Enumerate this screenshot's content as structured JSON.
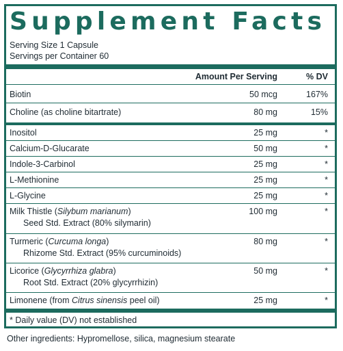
{
  "title": "Supplement Facts",
  "serving_size": "Serving Size 1 Capsule",
  "servings_per_container": "Servings per Container 60",
  "header": {
    "amount": "Amount Per Serving",
    "dv": "% DV"
  },
  "rows": [
    {
      "name": "Biotin",
      "amount": "50 mcg",
      "dv": "167%"
    },
    {
      "name": "Choline (as choline bitartrate)",
      "amount": "80 mg",
      "dv": "15%"
    },
    {
      "name": "Inositol",
      "amount": "25 mg",
      "dv": "*"
    },
    {
      "name": "Calcium-D-Glucarate",
      "amount": "50 mg",
      "dv": "*"
    },
    {
      "name": "Indole-3-Carbinol",
      "amount": "25 mg",
      "dv": "*"
    },
    {
      "name": "L-Methionine",
      "amount": "25 mg",
      "dv": "*"
    },
    {
      "name": "L-Glycine",
      "amount": "25 mg",
      "dv": "*"
    },
    {
      "name_pre": "Milk Thistle (",
      "name_it": "Silybum marianum",
      "name_post": ")",
      "sub": "Seed Std. Extract (80% silymarin)",
      "amount": "100 mg",
      "dv": "*"
    },
    {
      "name_pre": "Turmeric (",
      "name_it": "Curcuma longa",
      "name_post": ")",
      "sub": "Rhizome Std. Extract (95% curcuminoids)",
      "amount": "80 mg",
      "dv": "*"
    },
    {
      "name_pre": "Licorice (",
      "name_it": "Glycyrrhiza glabra",
      "name_post": ")",
      "sub": "Root Std. Extract (20% glycyrrhizin)",
      "amount": "50 mg",
      "dv": "*"
    },
    {
      "name_pre": "Limonene (from ",
      "name_it": "Citrus sinensis",
      "name_post": " peel oil)",
      "amount": "25 mg",
      "dv": "*"
    }
  ],
  "footnote": "* Daily value (DV) not established",
  "other_ingredients": "Other ingredients: Hypromellose, silica, magnesium stearate",
  "colors": {
    "accent": "#1c6b5e",
    "text": "#1e2a32"
  }
}
